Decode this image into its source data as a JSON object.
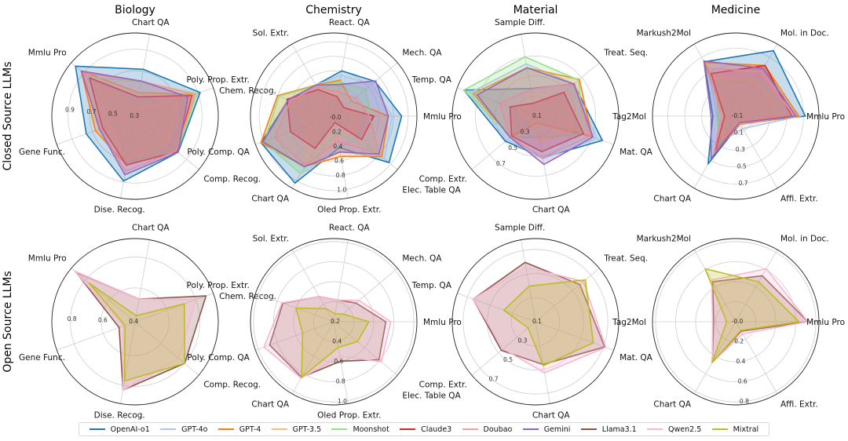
{
  "figure": {
    "row_labels": [
      "Closed Source LLMs",
      "Open Source LLMs"
    ]
  },
  "legend": [
    {
      "name": "OpenAI-o1",
      "color": "#1f77b4"
    },
    {
      "name": "GPT-4o",
      "color": "#aec7e8"
    },
    {
      "name": "GPT-4",
      "color": "#ff7f0e"
    },
    {
      "name": "GPT-3.5",
      "color": "#ffbb78"
    },
    {
      "name": "Moonshot",
      "color": "#98df8a"
    },
    {
      "name": "Claude3",
      "color": "#d62728"
    },
    {
      "name": "Doubao",
      "color": "#ff9896"
    },
    {
      "name": "Gemini",
      "color": "#9467bd"
    },
    {
      "name": "Llama3.1",
      "color": "#8c564b"
    },
    {
      "name": "Qwen2.5",
      "color": "#f7b6d2"
    },
    {
      "name": "Mixtral",
      "color": "#bcbd22"
    }
  ],
  "chart_data": [
    {
      "type": "radar",
      "title": "Biology",
      "row": "Closed Source LLMs",
      "grid": true,
      "axes": [
        "Chart QA",
        "Mmlu Pro",
        "Gene Func.",
        "Dise. Recog.",
        "Comp. Recog.",
        "Chem. Recog."
      ],
      "rlim": [
        0.28,
        1.05
      ],
      "rticks": [
        "0.3",
        "0.5",
        "0.7",
        "0.9"
      ],
      "series": [
        {
          "name": "OpenAI-o1",
          "values": [
            0.72,
            1.0,
            0.76,
            0.89,
            0.8,
            0.92
          ]
        },
        {
          "name": "GPT-4o",
          "values": [
            0.6,
            0.92,
            0.46,
            0.73,
            0.79,
            0.86
          ]
        },
        {
          "name": "GPT-4",
          "values": [
            0.5,
            0.93,
            0.67,
            0.74,
            0.79,
            0.87
          ]
        },
        {
          "name": "GPT-3.5",
          "values": [
            0.36,
            0.73,
            0.55,
            0.69,
            0.67,
            0.7
          ]
        },
        {
          "name": "Moonshot",
          "values": [
            0.6,
            0.85,
            0.62,
            0.7,
            0.79,
            0.89
          ]
        },
        {
          "name": "Claude3",
          "values": [
            0.46,
            0.83,
            0.6,
            0.74,
            0.79,
            0.84
          ]
        },
        {
          "name": "Doubao",
          "values": [
            0.61,
            0.9,
            0.62,
            0.8,
            0.78,
            0.87
          ]
        },
        {
          "name": "Gemini",
          "values": [
            0.61,
            0.93,
            0.63,
            0.83,
            0.8,
            0.8
          ]
        }
      ]
    },
    {
      "type": "radar",
      "title": "Chemistry",
      "row": "Closed Source LLMs",
      "grid": true,
      "axes": [
        "Mmlu Pro",
        "Mech. QA",
        "React. QA",
        "Sol. Extr.",
        "Poly. Prop. Extr.",
        "Poly. Comp. QA",
        "Chart QA",
        "Oled Prop. Extr.",
        "Elec. Table QA"
      ],
      "rlim": [
        -0.02,
        1.12
      ],
      "rticks": [
        "-0.0",
        "0.2",
        "0.4",
        "0.6",
        "0.8",
        "1.0"
      ],
      "series": [
        {
          "name": "OpenAI-o1",
          "values": [
            0.91,
            0.72,
            0.61,
            0.47,
            0.64,
            1.04,
            1.04,
            0.42,
            0.97
          ]
        },
        {
          "name": "GPT-4o",
          "values": [
            0.78,
            0.66,
            0.55,
            0.47,
            0.61,
            1.01,
            0.89,
            0.46,
            0.89
          ]
        },
        {
          "name": "GPT-4",
          "values": [
            0.73,
            0.3,
            0.48,
            0.47,
            0.8,
            1.04,
            0.78,
            0.54,
            0.84
          ]
        },
        {
          "name": "GPT-3.5",
          "values": [
            0.32,
            0.15,
            0.3,
            0.45,
            0.57,
            0.38,
            0.71,
            0.3,
            0.32
          ]
        },
        {
          "name": "Moonshot",
          "values": [
            0.49,
            0.55,
            0.46,
            0.46,
            0.78,
            0.99,
            0.89,
            0.22,
            0.78
          ]
        },
        {
          "name": "Claude3",
          "values": [
            0.53,
            0.16,
            0.25,
            0.4,
            0.66,
            0.61,
            0.49,
            0.07,
            0.48
          ]
        },
        {
          "name": "Doubao",
          "values": [
            0.47,
            0.37,
            0.32,
            0.44,
            0.61,
            0.84,
            0.76,
            0.33,
            0.79
          ]
        },
        {
          "name": "Gemini",
          "values": [
            0.73,
            0.73,
            0.42,
            0.47,
            0.64,
            1.01,
            0.78,
            0.48,
            0.79
          ]
        }
      ]
    },
    {
      "type": "radar",
      "title": "Material",
      "row": "Closed Source LLMs",
      "grid": true,
      "axes": [
        "Treat. Seq.",
        "Sample Diff.",
        "Temp. QA",
        "Comp. Extr.",
        "Chart QA",
        "Mat. QA"
      ],
      "rlim": [
        0.1,
        0.93
      ],
      "rticks": [
        "0.1",
        "0.3",
        "0.5",
        "0.7"
      ],
      "series": [
        {
          "name": "OpenAI-o1",
          "values": [
            0.6,
            0.38,
            0.86,
            0.49,
            0.52,
            0.81
          ]
        },
        {
          "name": "GPT-4o",
          "values": [
            0.6,
            0.63,
            0.79,
            0.47,
            0.53,
            0.75
          ]
        },
        {
          "name": "GPT-4",
          "values": [
            0.67,
            0.59,
            0.76,
            0.43,
            0.17,
            0.7
          ]
        },
        {
          "name": "GPT-3.5",
          "values": [
            0.45,
            0.32,
            0.29,
            0.17,
            0.37,
            0.5
          ]
        },
        {
          "name": "Moonshot",
          "values": [
            0.66,
            0.7,
            0.86,
            0.42,
            0.32,
            0.61
          ]
        },
        {
          "name": "Claude3",
          "values": [
            0.47,
            0.23,
            0.37,
            0.41,
            0.46,
            0.61
          ]
        },
        {
          "name": "Doubao",
          "values": [
            0.61,
            0.37,
            0.48,
            0.43,
            0.52,
            0.68
          ]
        },
        {
          "name": "Gemini",
          "values": [
            0.6,
            0.59,
            0.72,
            0.43,
            0.59,
            0.71
          ]
        }
      ]
    },
    {
      "type": "radar",
      "title": "Medicine",
      "row": "Closed Source LLMs",
      "grid": true,
      "axes": [
        "Mmlu Pro",
        "Mol. in Doc.",
        "Markush2Mol",
        "Tag2Mol",
        "Chart QA",
        "Affi. Extr."
      ],
      "rlim": [
        -0.1,
        0.88
      ],
      "rticks": [
        "-0.1",
        "0.1",
        "0.3",
        "0.5",
        "0.7"
      ],
      "series": [
        {
          "name": "OpenAI-o1",
          "values": [
            0.72,
            0.79,
            0.64,
            0.17,
            0.55,
            0.0
          ]
        },
        {
          "name": "GPT-4o",
          "values": [
            0.66,
            0.53,
            0.55,
            0.12,
            0.25,
            0.07
          ]
        },
        {
          "name": "GPT-4",
          "values": [
            0.64,
            0.59,
            0.63,
            0.04,
            0.39,
            0.01
          ]
        },
        {
          "name": "GPT-3.5",
          "values": [
            0.46,
            0.38,
            0.43,
            0.03,
            0.21,
            -0.01
          ]
        },
        {
          "name": "Moonshot",
          "values": [
            0.54,
            0.42,
            0.36,
            0.11,
            0.29,
            0.0
          ]
        },
        {
          "name": "Claude3",
          "values": [
            0.56,
            0.59,
            0.48,
            0.03,
            0.39,
            -0.01
          ]
        },
        {
          "name": "Doubao",
          "values": [
            0.59,
            0.51,
            0.55,
            0.07,
            0.41,
            0.0
          ]
        },
        {
          "name": "Gemini",
          "values": [
            0.61,
            0.55,
            0.65,
            0.19,
            0.48,
            -0.01
          ]
        }
      ]
    },
    {
      "type": "radar",
      "title": "",
      "row": "Open Source LLMs",
      "grid": true,
      "axes": [
        "Chart QA",
        "Mmlu Pro",
        "Gene Func.",
        "Dise. Recog.",
        "Comp. Recog.",
        "Chem. Recog."
      ],
      "rlim": [
        0.38,
        0.92
      ],
      "rticks": [
        "0.4",
        "0.6",
        "0.8"
      ],
      "series": [
        {
          "name": "Llama3.1",
          "values": [
            0.53,
            0.88,
            0.49,
            0.83,
            0.8,
            0.87
          ]
        },
        {
          "name": "Qwen2.5",
          "values": [
            0.53,
            0.89,
            0.46,
            0.83,
            0.75,
            0.8
          ]
        },
        {
          "name": "Mixtral",
          "values": [
            0.42,
            0.77,
            0.45,
            0.77,
            0.8,
            0.72
          ]
        }
      ]
    },
    {
      "type": "radar",
      "title": "",
      "row": "Open Source LLMs",
      "grid": true,
      "axes": [
        "Mmlu Pro",
        "Mech. QA",
        "React. QA",
        "Sol. Extr.",
        "Poly. Prop. Extr.",
        "Poly. Comp. QA",
        "Chart QA",
        "Oled Prop. Extr.",
        "Elec. Table QA"
      ],
      "rlim": [
        0.2,
        1.03
      ],
      "rticks": [
        "0.2",
        "0.4",
        "0.6",
        "0.8",
        "1.0"
      ],
      "series": [
        {
          "name": "Llama3.1",
          "values": [
            0.72,
            0.49,
            0.42,
            0.49,
            0.74,
            0.88,
            0.84,
            0.6,
            0.79
          ]
        },
        {
          "name": "Qwen2.5",
          "values": [
            0.77,
            0.53,
            0.42,
            0.49,
            0.75,
            0.94,
            0.85,
            0.55,
            0.82
          ]
        },
        {
          "name": "Mixtral",
          "values": [
            0.55,
            0.32,
            0.28,
            0.35,
            0.6,
            0.53,
            0.84,
            0.46,
            0.51
          ]
        }
      ]
    },
    {
      "type": "radar",
      "title": "",
      "row": "Open Source LLMs",
      "grid": true,
      "axes": [
        "Treat. Seq.",
        "Sample Diff.",
        "Temp. QA",
        "Comp. Extr.",
        "Chart QA",
        "Mat. QA"
      ],
      "rlim": [
        0.1,
        0.79
      ],
      "rticks": [
        "0.1",
        "0.3",
        "0.5",
        "0.7"
      ],
      "series": [
        {
          "name": "Llama3.1",
          "values": [
            0.58,
            0.6,
            0.65,
            0.47,
            0.46,
            0.71
          ]
        },
        {
          "name": "Qwen2.5",
          "values": [
            0.62,
            0.56,
            0.65,
            0.45,
            0.53,
            0.72
          ]
        },
        {
          "name": "Mixtral",
          "values": [
            0.64,
            0.4,
            0.38,
            0.18,
            0.47,
            0.61
          ]
        }
      ]
    },
    {
      "type": "radar",
      "title": "",
      "row": "Open Source LLMs",
      "grid": true,
      "axes": [
        "Mmlu Pro",
        "Mol. in Doc.",
        "Markush2Mol",
        "Tag2Mol",
        "Chart QA",
        "Affi. Extr."
      ],
      "rlim": [
        0.0,
        0.83
      ],
      "rticks": [
        "-0.0",
        "0.2",
        "0.4",
        "0.6",
        "0.8"
      ],
      "series": [
        {
          "name": "Llama3.1",
          "values": [
            0.72,
            0.53,
            0.46,
            0.22,
            0.47,
            0.11
          ]
        },
        {
          "name": "Qwen2.5",
          "values": [
            0.72,
            0.61,
            0.48,
            0.23,
            0.47,
            0.14
          ]
        },
        {
          "name": "Mixtral",
          "values": [
            0.63,
            0.46,
            0.61,
            0.09,
            0.47,
            0.1
          ]
        }
      ]
    }
  ]
}
